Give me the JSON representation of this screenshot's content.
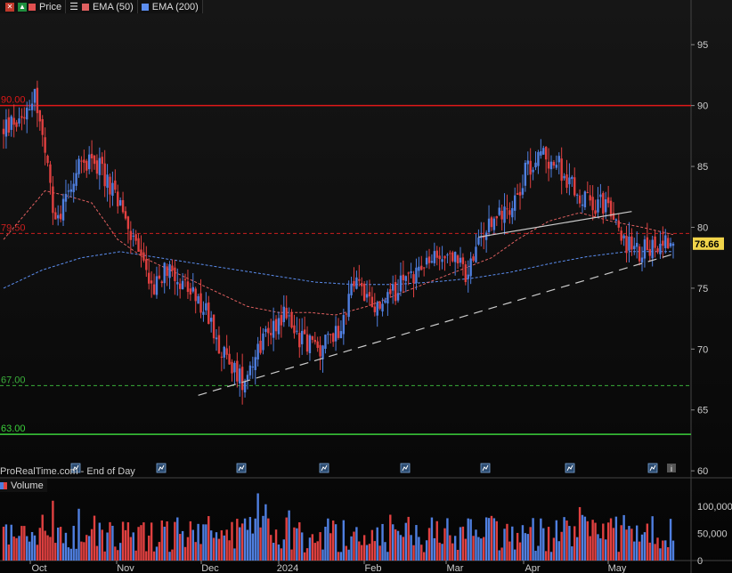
{
  "legend": {
    "price_label": "Price",
    "ema50_label": "EMA (50)",
    "ema200_label": "EMA (200)",
    "volume_label": "Volume",
    "colors": {
      "price": "#e05050",
      "ema50": "#e06060",
      "ema200": "#5b8def",
      "up": "#4f7fe0",
      "down": "#e04040"
    }
  },
  "credit": "ProRealTime.com - End of Day",
  "last_price_label": "78.66",
  "levels": [
    {
      "label": "90.00",
      "value": 90.0,
      "color": "#e01818",
      "dashed": false
    },
    {
      "label": "79.50",
      "value": 79.5,
      "color": "#cc1f1f",
      "dashed": true
    },
    {
      "label": "67.00",
      "value": 67.0,
      "color": "#3bb03b",
      "dashed": true
    },
    {
      "label": "63.00",
      "value": 63.0,
      "color": "#3bd13b",
      "dashed": false
    }
  ],
  "chart_data": {
    "type": "candlestick",
    "y_ticks": [
      60,
      65,
      70,
      75,
      80,
      85,
      90,
      95
    ],
    "ylim": [
      59.5,
      97.5
    ],
    "x_labels": [
      "Oct",
      "Nov",
      "Dec",
      "2024",
      "Feb",
      "Mar",
      "Apr",
      "May"
    ],
    "volume_ticks": [
      "0",
      "50,000",
      "100,000"
    ],
    "volume_ylim": [
      0,
      125000
    ],
    "price_keypoints": [
      [
        0,
        88
      ],
      [
        6,
        89
      ],
      [
        12,
        91
      ],
      [
        16,
        86
      ],
      [
        20,
        80
      ],
      [
        26,
        84
      ],
      [
        34,
        86
      ],
      [
        42,
        83
      ],
      [
        50,
        79
      ],
      [
        58,
        75
      ],
      [
        64,
        77
      ],
      [
        70,
        75
      ],
      [
        78,
        73
      ],
      [
        86,
        69
      ],
      [
        92,
        67.5
      ],
      [
        100,
        71
      ],
      [
        108,
        73
      ],
      [
        114,
        71
      ],
      [
        122,
        70
      ],
      [
        130,
        72
      ],
      [
        136,
        76
      ],
      [
        142,
        73
      ],
      [
        148,
        74
      ],
      [
        156,
        76
      ],
      [
        164,
        77
      ],
      [
        172,
        78
      ],
      [
        178,
        76
      ],
      [
        184,
        79
      ],
      [
        190,
        81
      ],
      [
        196,
        82
      ],
      [
        202,
        85
      ],
      [
        208,
        86
      ],
      [
        214,
        85
      ],
      [
        220,
        83
      ],
      [
        226,
        82
      ],
      [
        232,
        82
      ],
      [
        238,
        79
      ],
      [
        244,
        78
      ],
      [
        250,
        78.5
      ],
      [
        256,
        79
      ],
      [
        258,
        78.7
      ]
    ],
    "ema50_keypoints": [
      [
        0,
        79
      ],
      [
        8,
        81
      ],
      [
        16,
        83
      ],
      [
        26,
        82.5
      ],
      [
        34,
        82
      ],
      [
        44,
        79
      ],
      [
        54,
        77.5
      ],
      [
        64,
        76.5
      ],
      [
        74,
        75.5
      ],
      [
        84,
        74.5
      ],
      [
        94,
        73.5
      ],
      [
        106,
        73
      ],
      [
        118,
        73
      ],
      [
        128,
        72.8
      ],
      [
        140,
        73.5
      ],
      [
        152,
        74.5
      ],
      [
        164,
        75.5
      ],
      [
        176,
        76.5
      ],
      [
        188,
        77.5
      ],
      [
        198,
        79
      ],
      [
        210,
        80.5
      ],
      [
        222,
        81.2
      ],
      [
        234,
        80.5
      ],
      [
        246,
        80
      ],
      [
        258,
        79.4
      ]
    ],
    "ema200_keypoints": [
      [
        0,
        75
      ],
      [
        15,
        76.5
      ],
      [
        30,
        77.5
      ],
      [
        45,
        78
      ],
      [
        60,
        77.5
      ],
      [
        75,
        77
      ],
      [
        90,
        76.5
      ],
      [
        105,
        76
      ],
      [
        120,
        75.5
      ],
      [
        135,
        75.3
      ],
      [
        150,
        75.3
      ],
      [
        165,
        75.5
      ],
      [
        180,
        75.8
      ],
      [
        195,
        76.3
      ],
      [
        210,
        77
      ],
      [
        225,
        77.6
      ],
      [
        240,
        78
      ],
      [
        258,
        78
      ]
    ],
    "trendlines": [
      {
        "from": [
          75,
          66.2
        ],
        "to": [
          258,
          77.8
        ],
        "color": "#cccccc",
        "dashed": true
      },
      {
        "from": [
          183,
          79.2
        ],
        "to": [
          242,
          81.3
        ],
        "color": "#cccccc",
        "dashed": false
      }
    ],
    "bars": 259,
    "last_price": 78.66
  }
}
